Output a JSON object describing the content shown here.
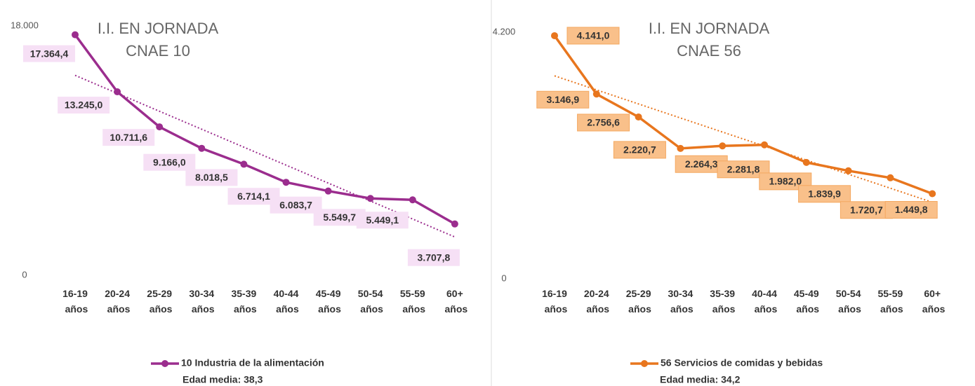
{
  "chart_data": [
    {
      "type": "line",
      "title": "I.I. EN JORNADA",
      "subtitle": "CNAE 10",
      "categories": [
        "16-19 años",
        "20-24 años",
        "25-29 años",
        "30-34 años",
        "35-39 años",
        "40-44 años",
        "45-49 años",
        "50-54 años",
        "55-59 años",
        "60+ años"
      ],
      "series": [
        {
          "name": "10 Industria de la alimentación",
          "color": "#9b2d8e",
          "values": [
            17364.4,
            13245.0,
            10711.6,
            9166.0,
            8018.5,
            6714.1,
            6083.7,
            5549.7,
            5449.1,
            3707.8
          ],
          "value_labels": [
            "17.364,4",
            "13.245,0",
            "10.711,6",
            "9.166,0",
            "8.018,5",
            "6.714,1",
            "6.083,7",
            "5.549,7",
            "5.449,1",
            "3.707,8"
          ]
        }
      ],
      "annotation": "Edad media: 38,3",
      "ylim": [
        0,
        18000
      ],
      "yticks": [
        0,
        {
          "value": 18000,
          "label": "18.000"
        }
      ],
      "trendline": true
    },
    {
      "type": "line",
      "title": "I.I. EN JORNADA",
      "subtitle": "CNAE 56",
      "categories": [
        "16-19 años",
        "20-24 años",
        "25-29 años",
        "30-34 años",
        "35-39 años",
        "40-44 años",
        "45-49 años",
        "50-54 años",
        "55-59 años",
        "60+ años"
      ],
      "series": [
        {
          "name": "56 Servicios de comidas y bebidas",
          "color": "#e8761e",
          "values": [
            4141.0,
            3146.9,
            2756.6,
            2220.7,
            2264.3,
            2281.8,
            1982.0,
            1839.9,
            1720.7,
            1449.8
          ],
          "value_labels": [
            "4.141,0",
            "3.146,9",
            "2.756,6",
            "2.220,7",
            "2.264,3",
            "2.281,8",
            "1.982,0",
            "1.839,9",
            "1.720,7",
            "1.449,8"
          ]
        }
      ],
      "annotation": "Edad media: 34,2",
      "ylim": [
        0,
        4200
      ],
      "yticks": [
        0,
        {
          "value": 4200,
          "label": "4.200"
        }
      ],
      "trendline": true
    }
  ]
}
